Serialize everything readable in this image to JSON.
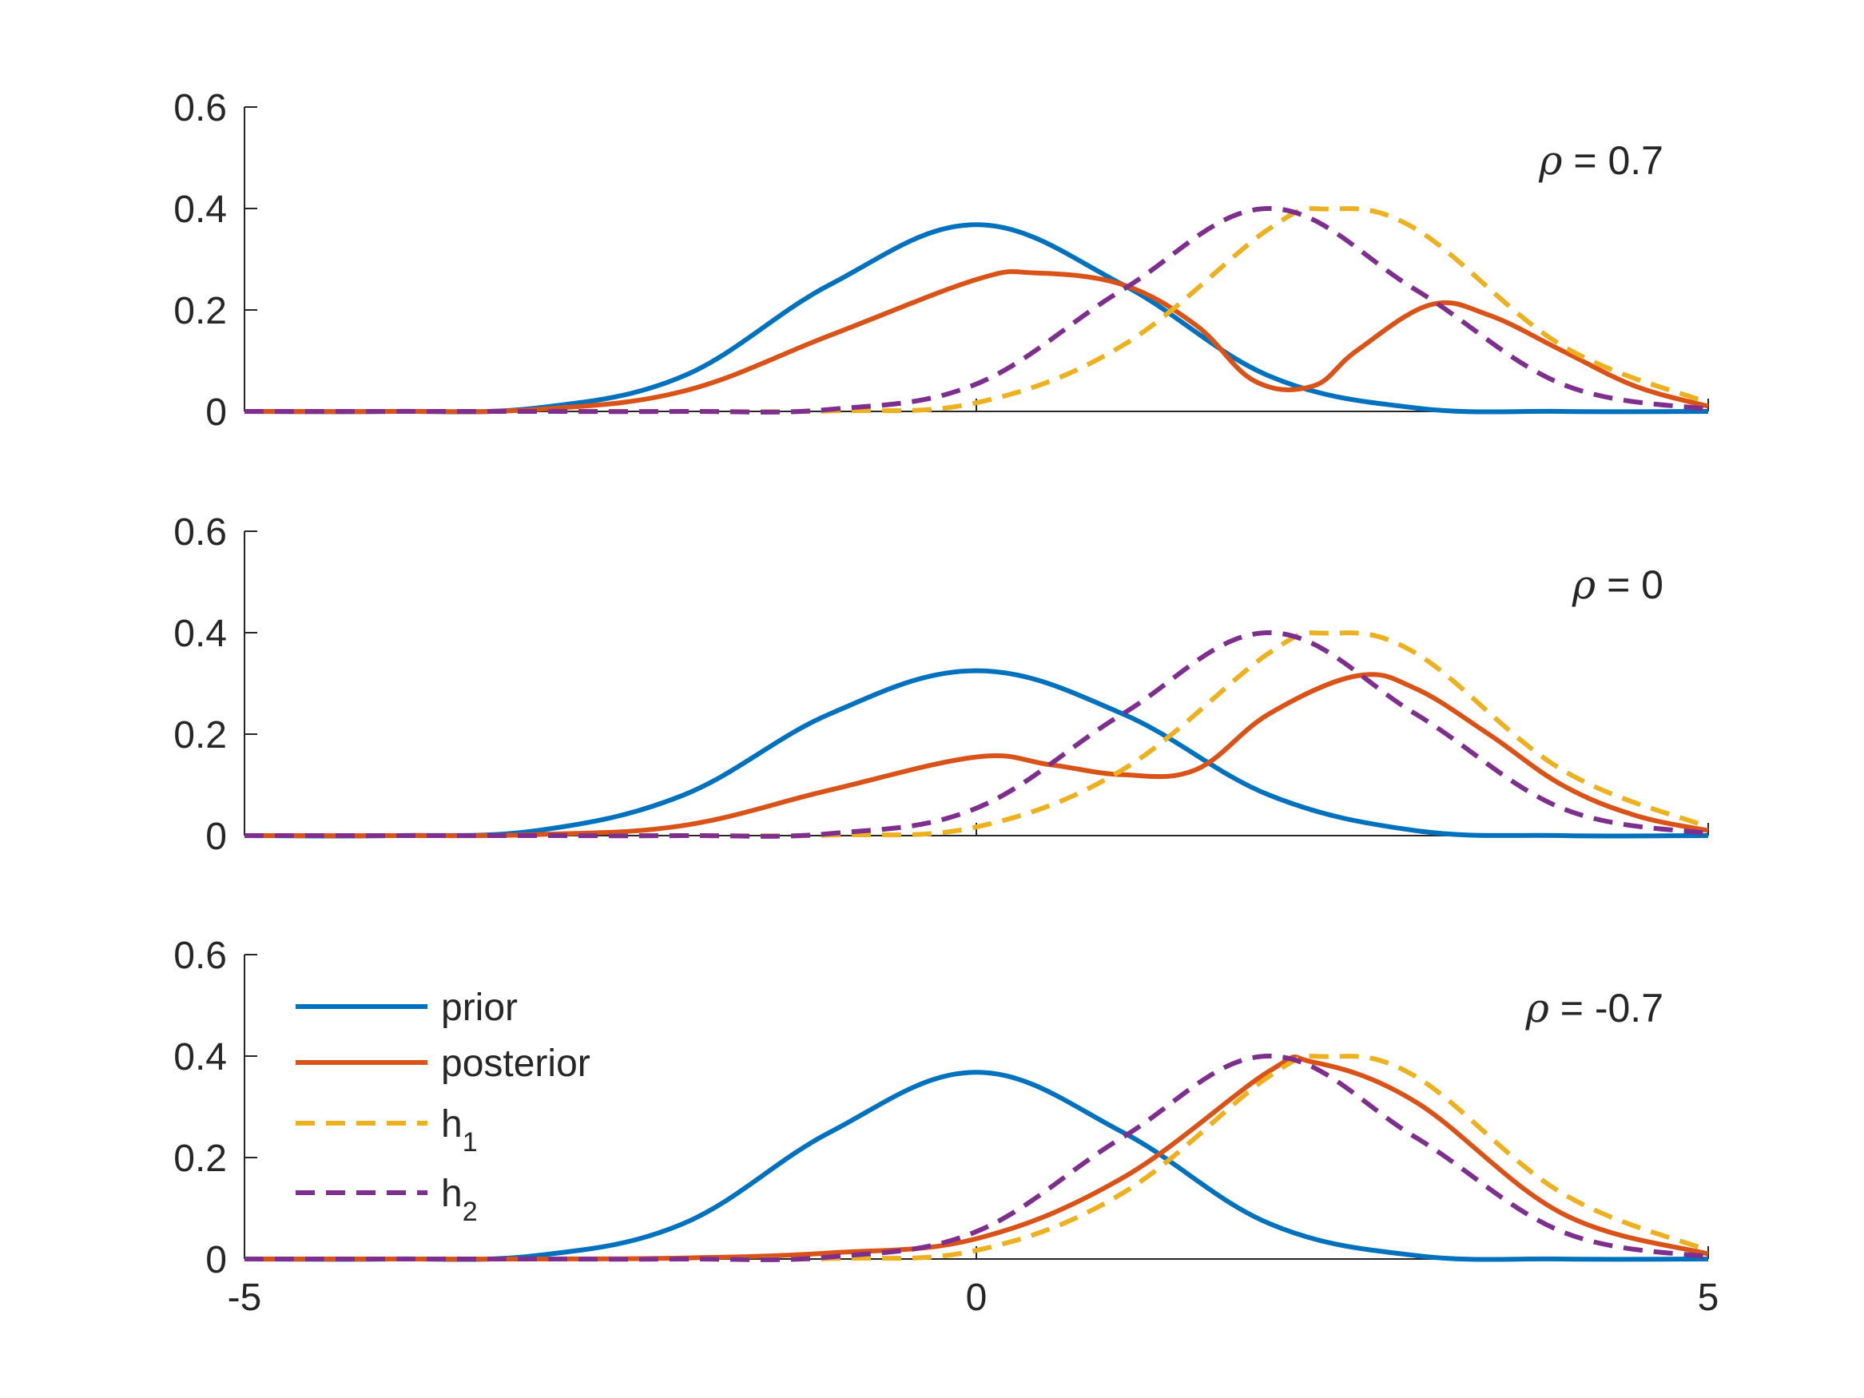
{
  "colors": {
    "prior": "#0072BD",
    "posterior": "#D95319",
    "h1": "#EDB120",
    "h2": "#7E2F8E",
    "axis": "#262626"
  },
  "legend": {
    "location": "upper-left of bottom panel",
    "items": [
      {
        "key": "prior",
        "label": "prior",
        "style": "solid"
      },
      {
        "key": "posterior",
        "label": "posterior",
        "style": "solid"
      },
      {
        "key": "h1",
        "label": "h",
        "subscript": "1",
        "style": "dashed"
      },
      {
        "key": "h2",
        "label": "h",
        "subscript": "2",
        "style": "dashed"
      }
    ]
  },
  "chart_data": [
    {
      "type": "line",
      "annotation": {
        "symbol": "ρ",
        "text": " = 0.7"
      },
      "xlim": [
        -5,
        5
      ],
      "ylim": [
        0,
        0.6
      ],
      "xticks": [
        -5,
        0,
        5
      ],
      "xtick_labels_shown": false,
      "yticks": [
        0,
        0.2,
        0.4,
        0.6
      ],
      "ytick_labels": [
        "0",
        "0.2",
        "0.4",
        "0.6"
      ],
      "series": [
        {
          "name": "prior",
          "x": [
            -5,
            -4,
            -3,
            -2,
            -1,
            0,
            1,
            2,
            3,
            4,
            5
          ],
          "y": [
            0.0,
            0.0,
            0.007,
            0.07,
            0.25,
            0.368,
            0.25,
            0.07,
            0.007,
            0.0,
            0.0
          ]
        },
        {
          "name": "posterior",
          "x": [
            -5,
            -4,
            -3,
            -2,
            -1,
            0,
            0.4,
            1,
            1.5,
            1.9,
            2.3,
            2.6,
            3.1,
            3.5,
            4,
            4.5,
            5
          ],
          "y": [
            0.0,
            0.0,
            0.004,
            0.04,
            0.15,
            0.26,
            0.273,
            0.25,
            0.17,
            0.06,
            0.05,
            0.12,
            0.21,
            0.19,
            0.12,
            0.05,
            0.01
          ]
        },
        {
          "name": "h1",
          "x": [
            -5,
            -4,
            -3,
            -2,
            -1,
            0,
            1,
            2,
            2.4,
            3,
            4,
            5
          ],
          "y": [
            0.0,
            0.0,
            0.0,
            0.0,
            0.001,
            0.017,
            0.13,
            0.36,
            0.399,
            0.36,
            0.13,
            0.017
          ]
        },
        {
          "name": "h2",
          "x": [
            -5,
            -4,
            -3,
            -2,
            -1,
            0,
            1,
            2,
            3,
            4,
            5
          ],
          "y": [
            0.0,
            0.0,
            0.0,
            0.0,
            0.004,
            0.054,
            0.24,
            0.4,
            0.24,
            0.054,
            0.004
          ]
        }
      ]
    },
    {
      "type": "line",
      "annotation": {
        "symbol": "ρ",
        "text": " = 0"
      },
      "xlim": [
        -5,
        5
      ],
      "ylim": [
        0,
        0.6
      ],
      "xticks": [
        -5,
        0,
        5
      ],
      "xtick_labels_shown": false,
      "yticks": [
        0,
        0.2,
        0.4,
        0.6
      ],
      "ytick_labels": [
        "0",
        "0.2",
        "0.4",
        "0.6"
      ],
      "series": [
        {
          "name": "prior",
          "x": [
            -5,
            -4,
            -3,
            -2,
            -1,
            0,
            1,
            2,
            3,
            4,
            5
          ],
          "y": [
            0.0,
            0.0,
            0.01,
            0.08,
            0.24,
            0.325,
            0.24,
            0.08,
            0.01,
            0.0,
            0.0
          ]
        },
        {
          "name": "posterior",
          "x": [
            -5,
            -4,
            -3,
            -2,
            -1,
            0,
            0.5,
            1,
            1.5,
            2,
            2.6,
            3,
            3.5,
            4,
            4.5,
            5
          ],
          "y": [
            0.0,
            0.0,
            0.002,
            0.02,
            0.09,
            0.155,
            0.14,
            0.12,
            0.13,
            0.24,
            0.315,
            0.29,
            0.2,
            0.1,
            0.04,
            0.01
          ]
        },
        {
          "name": "h1",
          "x": [
            -5,
            -4,
            -3,
            -2,
            -1,
            0,
            1,
            2,
            2.4,
            3,
            4,
            5
          ],
          "y": [
            0.0,
            0.0,
            0.0,
            0.0,
            0.001,
            0.017,
            0.13,
            0.36,
            0.399,
            0.36,
            0.13,
            0.017
          ]
        },
        {
          "name": "h2",
          "x": [
            -5,
            -4,
            -3,
            -2,
            -1,
            0,
            1,
            2,
            3,
            4,
            5
          ],
          "y": [
            0.0,
            0.0,
            0.0,
            0.0,
            0.004,
            0.054,
            0.24,
            0.4,
            0.24,
            0.054,
            0.004
          ]
        }
      ]
    },
    {
      "type": "line",
      "annotation": {
        "symbol": "ρ",
        "text": " = -0.7"
      },
      "xlim": [
        -5,
        5
      ],
      "ylim": [
        0,
        0.6
      ],
      "xticks": [
        -5,
        0,
        5
      ],
      "xtick_labels_shown": true,
      "xtick_labels": [
        "-5",
        "0",
        "5"
      ],
      "yticks": [
        0,
        0.2,
        0.4,
        0.6
      ],
      "ytick_labels": [
        "0",
        "0.2",
        "0.4",
        "0.6"
      ],
      "series": [
        {
          "name": "prior",
          "x": [
            -5,
            -4,
            -3,
            -2,
            -1,
            0,
            1,
            2,
            3,
            4,
            5
          ],
          "y": [
            0.0,
            0.0,
            0.007,
            0.07,
            0.25,
            0.368,
            0.25,
            0.07,
            0.007,
            0.0,
            0.0
          ]
        },
        {
          "name": "posterior",
          "x": [
            -5,
            -4,
            -3,
            -2,
            -1,
            0,
            1,
            2,
            2.3,
            3,
            4,
            5
          ],
          "y": [
            0.0,
            0.0,
            0.0,
            0.002,
            0.012,
            0.04,
            0.16,
            0.37,
            0.388,
            0.31,
            0.09,
            0.01
          ]
        },
        {
          "name": "h1",
          "x": [
            -5,
            -4,
            -3,
            -2,
            -1,
            0,
            1,
            2,
            2.4,
            3,
            4,
            5
          ],
          "y": [
            0.0,
            0.0,
            0.0,
            0.0,
            0.001,
            0.017,
            0.13,
            0.36,
            0.399,
            0.36,
            0.13,
            0.017
          ]
        },
        {
          "name": "h2",
          "x": [
            -5,
            -4,
            -3,
            -2,
            -1,
            0,
            1,
            2,
            3,
            4,
            5
          ],
          "y": [
            0.0,
            0.0,
            0.0,
            0.0,
            0.004,
            0.054,
            0.24,
            0.4,
            0.24,
            0.054,
            0.004
          ]
        }
      ]
    }
  ]
}
